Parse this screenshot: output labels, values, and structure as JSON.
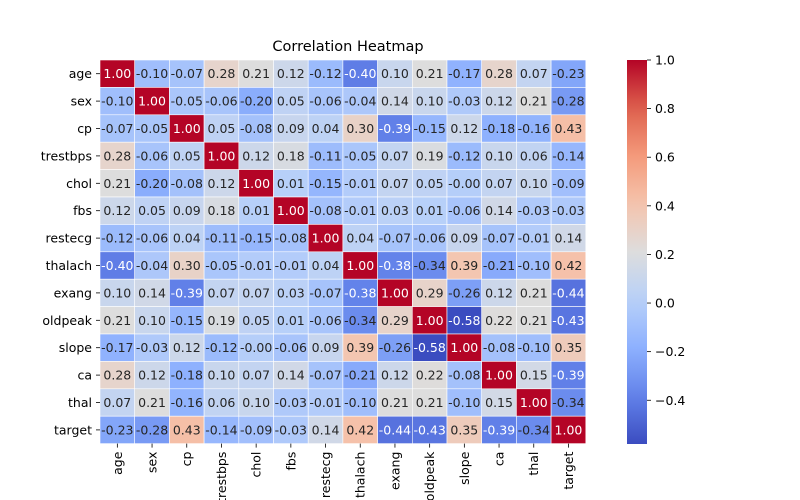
{
  "chart_data": {
    "type": "heatmap",
    "title": "Correlation Heatmap",
    "xlabel": "",
    "ylabel": "",
    "colormap": "coolwarm",
    "value_format": "0.00",
    "grid": false,
    "legend": "colorbar-right",
    "color_range": [
      -0.58,
      1.0
    ],
    "colorbar_ticks": [
      1.0,
      0.8,
      0.6,
      0.4,
      0.2,
      0.0,
      -0.2,
      -0.4
    ],
    "colorbar_tick_labels": [
      "1.0",
      "0.8",
      "0.6",
      "0.4",
      "0.2",
      "0.0",
      "−0.2",
      "−0.4"
    ],
    "rows": [
      "age",
      "sex",
      "cp",
      "trestbps",
      "chol",
      "fbs",
      "restecg",
      "thalach",
      "exang",
      "oldpeak",
      "slope",
      "ca",
      "thal",
      "target"
    ],
    "columns": [
      "age",
      "sex",
      "cp",
      "trestbps",
      "chol",
      "fbs",
      "restecg",
      "thalach",
      "exang",
      "oldpeak",
      "slope",
      "ca",
      "thal",
      "target"
    ],
    "values": [
      [
        1.0,
        -0.1,
        -0.07,
        0.28,
        0.21,
        0.12,
        -0.12,
        -0.4,
        0.1,
        0.21,
        -0.17,
        0.28,
        0.07,
        -0.23
      ],
      [
        -0.1,
        1.0,
        -0.05,
        -0.06,
        -0.2,
        0.05,
        -0.06,
        -0.04,
        0.14,
        0.1,
        -0.03,
        0.12,
        0.21,
        -0.28
      ],
      [
        -0.07,
        -0.05,
        1.0,
        0.05,
        -0.08,
        0.09,
        0.04,
        0.3,
        -0.39,
        -0.15,
        0.12,
        -0.18,
        -0.16,
        0.43
      ],
      [
        0.28,
        -0.06,
        0.05,
        1.0,
        0.12,
        0.18,
        -0.11,
        -0.05,
        0.07,
        0.19,
        -0.12,
        0.1,
        0.06,
        -0.14
      ],
      [
        0.21,
        -0.2,
        -0.08,
        0.12,
        1.0,
        0.01,
        -0.15,
        -0.01,
        0.07,
        0.05,
        -0.0,
        0.07,
        0.1,
        -0.09
      ],
      [
        0.12,
        0.05,
        0.09,
        0.18,
        0.01,
        1.0,
        -0.08,
        -0.01,
        0.03,
        0.01,
        -0.06,
        0.14,
        -0.03,
        -0.03
      ],
      [
        -0.12,
        -0.06,
        0.04,
        -0.11,
        -0.15,
        -0.08,
        1.0,
        0.04,
        -0.07,
        -0.06,
        0.09,
        -0.07,
        -0.01,
        0.14
      ],
      [
        -0.4,
        -0.04,
        0.3,
        -0.05,
        -0.01,
        -0.01,
        0.04,
        1.0,
        -0.38,
        -0.34,
        0.39,
        -0.21,
        -0.1,
        0.42
      ],
      [
        0.1,
        0.14,
        -0.39,
        0.07,
        0.07,
        0.03,
        -0.07,
        -0.38,
        1.0,
        0.29,
        -0.26,
        0.12,
        0.21,
        -0.44
      ],
      [
        0.21,
        0.1,
        -0.15,
        0.19,
        0.05,
        0.01,
        -0.06,
        -0.34,
        0.29,
        1.0,
        -0.58,
        0.22,
        0.21,
        -0.43
      ],
      [
        -0.17,
        -0.03,
        0.12,
        -0.12,
        -0.0,
        -0.06,
        0.09,
        0.39,
        -0.26,
        -0.58,
        1.0,
        -0.08,
        -0.1,
        0.35
      ],
      [
        0.28,
        0.12,
        -0.18,
        0.1,
        0.07,
        0.14,
        -0.07,
        -0.21,
        0.12,
        0.22,
        -0.08,
        1.0,
        0.15,
        -0.39
      ],
      [
        0.07,
        0.21,
        -0.16,
        0.06,
        0.1,
        -0.03,
        -0.01,
        -0.1,
        0.21,
        0.21,
        -0.1,
        0.15,
        1.0,
        -0.34
      ],
      [
        -0.23,
        -0.28,
        0.43,
        -0.14,
        -0.09,
        -0.03,
        0.14,
        0.42,
        -0.44,
        -0.43,
        0.35,
        -0.39,
        -0.34,
        1.0
      ]
    ]
  }
}
